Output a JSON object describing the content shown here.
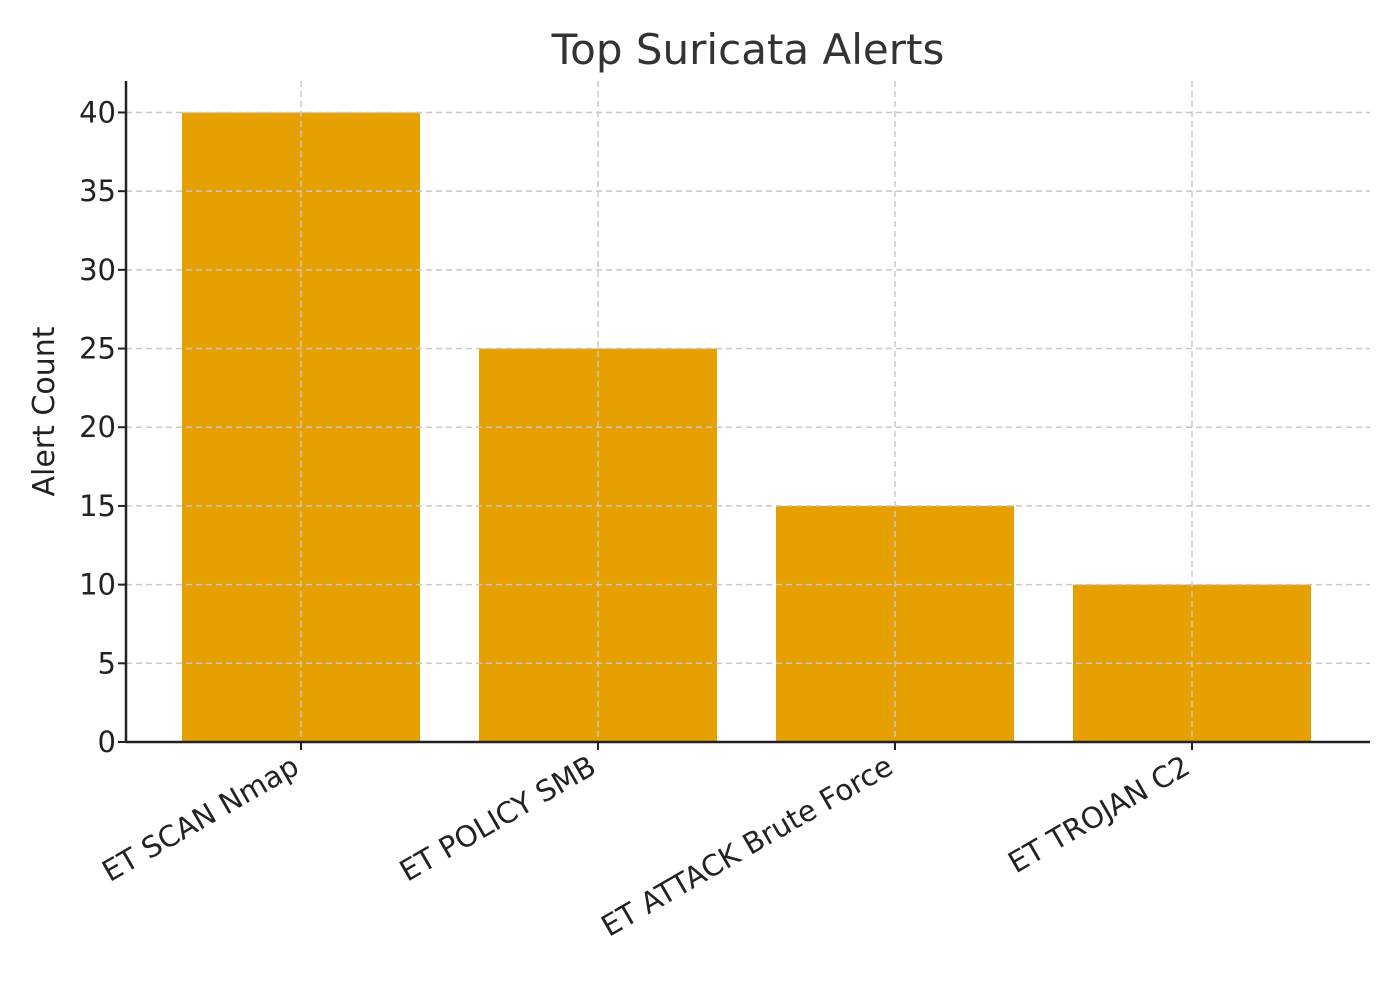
{
  "chart_data": {
    "type": "bar",
    "title": "Top Suricata Alerts",
    "xlabel": "",
    "ylabel": "Alert Count",
    "categories": [
      "ET SCAN Nmap",
      "ET POLICY SMB",
      "ET ATTACK Brute Force",
      "ET TROJAN C2"
    ],
    "values": [
      40,
      25,
      15,
      10
    ],
    "ylim": [
      0,
      42
    ],
    "yticks": [
      0,
      5,
      10,
      15,
      20,
      25,
      30,
      35,
      40
    ],
    "bar_color": "#e6a000",
    "grid": true,
    "legend": false
  }
}
